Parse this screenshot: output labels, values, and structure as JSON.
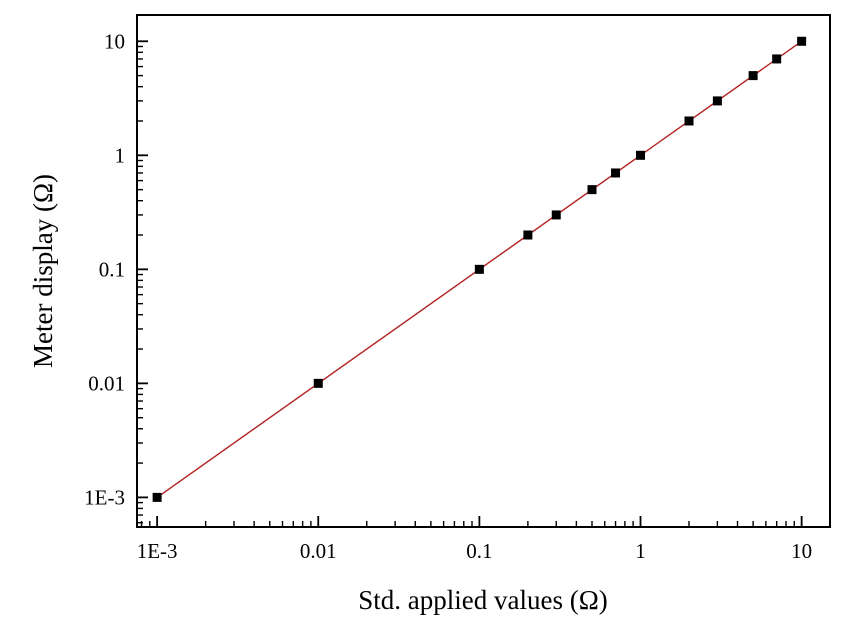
{
  "chart_data": {
    "type": "scatter",
    "title": "",
    "xlabel": "Std. applied values (Ω)",
    "ylabel": "Meter display (Ω)",
    "xscale": "log",
    "yscale": "log",
    "xlim": [
      0.00075,
      15
    ],
    "ylim": [
      0.00055,
      17
    ],
    "grid": false,
    "legend": "none",
    "x_ticks": [
      {
        "value": 0.001,
        "label": "1E-3"
      },
      {
        "value": 0.01,
        "label": "0.01"
      },
      {
        "value": 0.1,
        "label": "0.1"
      },
      {
        "value": 1,
        "label": "1"
      },
      {
        "value": 10,
        "label": "10"
      }
    ],
    "y_ticks": [
      {
        "value": 0.001,
        "label": "1E-3"
      },
      {
        "value": 0.01,
        "label": "0.01"
      },
      {
        "value": 0.1,
        "label": "0.1"
      },
      {
        "value": 1,
        "label": "1"
      },
      {
        "value": 10,
        "label": "10"
      }
    ],
    "series": [
      {
        "marker": "square",
        "color": "#000000",
        "points": [
          {
            "x": 0.001,
            "y": 0.001
          },
          {
            "x": 0.01,
            "y": 0.01
          },
          {
            "x": 0.1,
            "y": 0.1
          },
          {
            "x": 0.2,
            "y": 0.2
          },
          {
            "x": 0.3,
            "y": 0.3
          },
          {
            "x": 0.5,
            "y": 0.5
          },
          {
            "x": 0.7,
            "y": 0.7
          },
          {
            "x": 1,
            "y": 1
          },
          {
            "x": 2,
            "y": 2
          },
          {
            "x": 3,
            "y": 3
          },
          {
            "x": 5,
            "y": 5
          },
          {
            "x": 7,
            "y": 7
          },
          {
            "x": 10,
            "y": 10
          }
        ]
      }
    ],
    "fit_line": {
      "color": "#b22222",
      "from": {
        "x": 0.001,
        "y": 0.001
      },
      "to": {
        "x": 10,
        "y": 10
      }
    }
  }
}
